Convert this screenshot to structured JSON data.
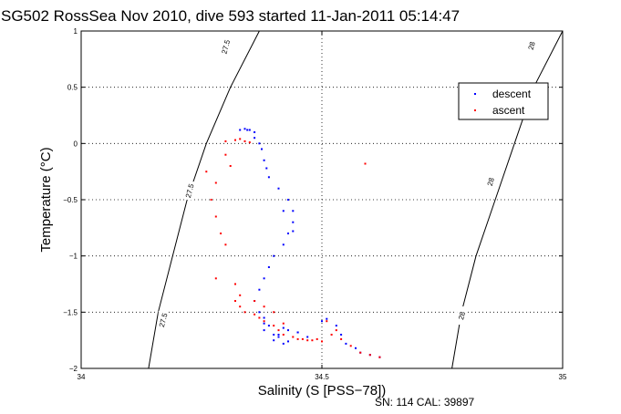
{
  "chart_data": {
    "type": "scatter",
    "title": "SG502 RossSea Nov 2010, dive 593 started 11-Jan-2011 05:14:47",
    "xlabel": "Salinity (S [PSS−78])",
    "ylabel": "Temperature (°C)",
    "xlim": [
      34,
      35
    ],
    "ylim": [
      -2,
      1
    ],
    "x_ticks": [
      "34",
      "34.5",
      "35"
    ],
    "x_tick_values": [
      34,
      34.5,
      35
    ],
    "y_ticks": [
      "1",
      "0.5",
      "0",
      "−0.5",
      "−1",
      "−1.5",
      "−2"
    ],
    "y_tick_values": [
      1,
      0.5,
      0,
      -0.5,
      -1,
      -1.5,
      -2
    ],
    "grid": true,
    "legend_position": "top-right",
    "contours": [
      {
        "label": "27.5",
        "points": [
          [
            34.14,
            -2.0
          ],
          [
            34.16,
            -1.5
          ],
          [
            34.19,
            -1.0
          ],
          [
            34.22,
            -0.5
          ],
          [
            34.26,
            0.0
          ],
          [
            34.31,
            0.5
          ],
          [
            34.37,
            1.0
          ]
        ],
        "labels": [
          [
            34.17,
            -1.57
          ],
          [
            34.225,
            -0.42
          ],
          [
            34.3,
            0.86
          ]
        ]
      },
      {
        "label": "28",
        "points": [
          [
            34.77,
            -2.0
          ],
          [
            34.79,
            -1.5
          ],
          [
            34.82,
            -1.0
          ],
          [
            34.86,
            -0.5
          ],
          [
            34.9,
            0.0
          ],
          [
            34.94,
            0.5
          ],
          [
            35.0,
            1.0
          ]
        ],
        "labels": [
          [
            34.79,
            -1.53
          ],
          [
            34.85,
            -0.34
          ],
          [
            34.935,
            0.87
          ]
        ]
      }
    ],
    "series": [
      {
        "name": "descent",
        "color": "#0000ff",
        "x": [
          34.33,
          34.34,
          34.345,
          34.35,
          34.36,
          34.36,
          34.37,
          34.375,
          34.38,
          34.385,
          34.39,
          34.41,
          34.43,
          34.44,
          34.44,
          34.43,
          34.42,
          34.4,
          34.39,
          34.38,
          34.37,
          34.36,
          34.37,
          34.38,
          34.38,
          34.39,
          34.38,
          34.4,
          34.41,
          34.4,
          34.42,
          34.43,
          34.45,
          34.5,
          34.51,
          34.53,
          34.54,
          34.55,
          34.57,
          34.58,
          34.6,
          34.62,
          34.47,
          34.45,
          34.43,
          34.42,
          34.41,
          34.44,
          34.42
        ],
        "y": [
          0.12,
          0.13,
          0.12,
          0.12,
          0.1,
          0.05,
          0.0,
          -0.05,
          -0.15,
          -0.22,
          -0.3,
          -0.4,
          -0.5,
          -0.6,
          -0.7,
          -0.8,
          -0.9,
          -1.0,
          -1.1,
          -1.2,
          -1.3,
          -1.4,
          -1.5,
          -1.55,
          -1.6,
          -1.62,
          -1.66,
          -1.7,
          -1.72,
          -1.75,
          -1.78,
          -1.76,
          -1.68,
          -1.58,
          -1.56,
          -1.62,
          -1.7,
          -1.78,
          -1.82,
          -1.86,
          -1.88,
          -1.9,
          -1.72,
          -1.68,
          -1.66,
          -1.64,
          -1.7,
          -0.78,
          -0.6
        ]
      },
      {
        "name": "ascent",
        "color": "#ff0000",
        "x": [
          34.3,
          34.32,
          34.33,
          34.34,
          34.35,
          34.3,
          34.31,
          34.26,
          34.28,
          34.27,
          34.28,
          34.29,
          34.3,
          34.28,
          34.32,
          34.33,
          34.32,
          34.33,
          34.34,
          34.36,
          34.37,
          34.38,
          34.4,
          34.41,
          34.42,
          34.44,
          34.46,
          34.48,
          34.5,
          34.52,
          34.54,
          34.56,
          34.58,
          34.6,
          34.62,
          34.36,
          34.38,
          34.4,
          34.42,
          34.45,
          34.47,
          34.49,
          34.51,
          34.53,
          34.59
        ],
        "y": [
          0.02,
          0.03,
          0.04,
          0.02,
          0.01,
          -0.1,
          -0.2,
          -0.25,
          -0.35,
          -0.5,
          -0.65,
          -0.8,
          -0.9,
          -1.2,
          -1.25,
          -1.35,
          -1.4,
          -1.45,
          -1.5,
          -1.52,
          -1.55,
          -1.58,
          -1.62,
          -1.66,
          -1.7,
          -1.72,
          -1.74,
          -1.75,
          -1.76,
          -1.7,
          -1.74,
          -1.8,
          -1.86,
          -1.88,
          -1.9,
          -1.4,
          -1.45,
          -1.5,
          -1.6,
          -1.74,
          -1.75,
          -1.74,
          -1.58,
          -1.66,
          -0.18
        ]
      }
    ]
  },
  "legend": {
    "descent": "descent",
    "ascent": "ascent"
  },
  "footer": {
    "sn_cal": "SN: 114  CAL: 39897"
  }
}
